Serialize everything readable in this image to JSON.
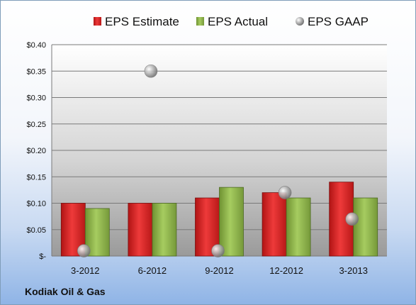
{
  "company": "Kodiak Oil & Gas",
  "chart_data": {
    "type": "bar",
    "categories": [
      "3-2012",
      "6-2012",
      "9-2012",
      "12-2012",
      "3-2013"
    ],
    "series": [
      {
        "name": "EPS Estimate",
        "kind": "bar",
        "color": "#d42020",
        "values": [
          0.1,
          0.1,
          0.11,
          0.12,
          0.14
        ]
      },
      {
        "name": "EPS Actual",
        "kind": "bar",
        "color": "#8db348",
        "values": [
          0.09,
          0.1,
          0.13,
          0.11,
          0.11
        ]
      },
      {
        "name": "EPS GAAP",
        "kind": "marker",
        "color": "#a6a6a6",
        "values": [
          0.01,
          0.35,
          0.01,
          0.12,
          0.07
        ]
      }
    ],
    "yticks": [
      "$-",
      "$0.05",
      "$0.10",
      "$0.15",
      "$0.20",
      "$0.25",
      "$0.30",
      "$0.35",
      "$0.40"
    ],
    "ylim": [
      0,
      0.4
    ],
    "ystep": 0.05,
    "grid": true,
    "legend": "top",
    "title": "",
    "xlabel": "",
    "ylabel": ""
  }
}
